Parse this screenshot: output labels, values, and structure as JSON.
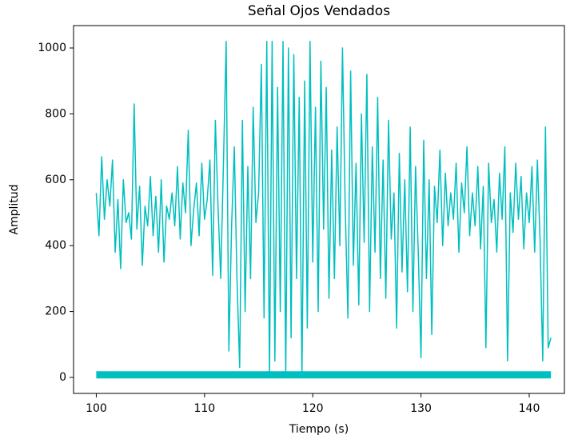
{
  "chart_data": {
    "type": "line",
    "title": "Señal Ojos Vendados",
    "x_label": "Tiempo (s)",
    "y_label": "Amplitud",
    "xlim": [
      97.9,
      143.25
    ],
    "ylim": [
      -48.6,
      1068
    ],
    "xticks": [
      100,
      110,
      120,
      130,
      140
    ],
    "yticks": [
      0,
      200,
      400,
      600,
      800,
      1000
    ],
    "grid": false,
    "series": [
      {
        "color": "#00bfbf",
        "x": [
          100,
          100.25,
          100.5,
          100.75,
          101,
          101.25,
          101.5,
          101.75,
          102,
          102.25,
          102.5,
          102.75,
          103,
          103.25,
          103.5,
          103.75,
          104,
          104.25,
          104.5,
          104.75,
          105,
          105.25,
          105.5,
          105.75,
          106,
          106.25,
          106.5,
          106.75,
          107,
          107.25,
          107.5,
          107.75,
          108,
          108.25,
          108.5,
          108.75,
          109,
          109.25,
          109.5,
          109.75,
          110,
          110.25,
          110.5,
          110.75,
          111,
          111.25,
          111.5,
          111.75,
          112,
          112.25,
          112.5,
          112.75,
          113,
          113.25,
          113.5,
          113.75,
          114,
          114.25,
          114.5,
          114.75,
          115,
          115.25,
          115.5,
          115.75,
          116,
          116.25,
          116.5,
          116.75,
          117,
          117.25,
          117.5,
          117.75,
          118,
          118.25,
          118.5,
          118.75,
          119,
          119.25,
          119.5,
          119.75,
          120,
          120.25,
          120.5,
          120.75,
          121,
          121.25,
          121.5,
          121.75,
          122,
          122.25,
          122.5,
          122.75,
          123,
          123.25,
          123.5,
          123.75,
          124,
          124.25,
          124.5,
          124.75,
          125,
          125.25,
          125.5,
          125.75,
          126,
          126.25,
          126.5,
          126.75,
          127,
          127.25,
          127.5,
          127.75,
          128,
          128.25,
          128.5,
          128.75,
          129,
          129.25,
          129.5,
          129.75,
          130,
          130.25,
          130.5,
          130.75,
          131,
          131.25,
          131.5,
          131.75,
          132,
          132.25,
          132.5,
          132.75,
          133,
          133.25,
          133.5,
          133.75,
          134,
          134.25,
          134.5,
          134.75,
          135,
          135.25,
          135.5,
          135.75,
          136,
          136.25,
          136.5,
          136.75,
          137,
          137.25,
          137.5,
          137.75,
          138,
          138.25,
          138.5,
          138.75,
          139,
          139.25,
          139.5,
          139.75,
          140,
          140.25,
          140.5,
          140.75,
          141,
          141.25,
          141.5,
          141.75,
          142
        ],
        "values": [
          560,
          430,
          670,
          480,
          600,
          520,
          660,
          380,
          540,
          330,
          600,
          470,
          500,
          420,
          830,
          450,
          580,
          340,
          520,
          460,
          610,
          430,
          550,
          380,
          600,
          350,
          520,
          480,
          560,
          460,
          640,
          420,
          590,
          500,
          750,
          400,
          510,
          590,
          430,
          650,
          480,
          540,
          660,
          310,
          780,
          520,
          300,
          650,
          1020,
          80,
          460,
          700,
          300,
          30,
          780,
          200,
          640,
          300,
          820,
          470,
          560,
          950,
          180,
          1020,
          0,
          1020,
          50,
          880,
          200,
          1020,
          0,
          1000,
          120,
          980,
          300,
          850,
          0,
          900,
          150,
          1020,
          350,
          820,
          200,
          960,
          450,
          880,
          240,
          690,
          300,
          760,
          400,
          1000,
          520,
          180,
          930,
          340,
          650,
          220,
          800,
          410,
          920,
          200,
          700,
          380,
          850,
          300,
          660,
          240,
          780,
          420,
          560,
          150,
          680,
          320,
          600,
          260,
          760,
          200,
          640,
          380,
          60,
          720,
          300,
          600,
          130,
          580,
          470,
          690,
          400,
          620,
          460,
          560,
          480,
          650,
          380,
          590,
          500,
          700,
          430,
          560,
          460,
          640,
          390,
          580,
          90,
          650,
          470,
          540,
          380,
          620,
          480,
          700,
          50,
          560,
          440,
          650,
          480,
          610,
          390,
          560,
          470,
          640,
          380,
          660,
          420,
          50,
          760,
          90,
          120
        ]
      },
      {
        "color": "#00bfbf",
        "x": [
          100,
          142
        ],
        "values": [
          8,
          8
        ]
      }
    ]
  }
}
